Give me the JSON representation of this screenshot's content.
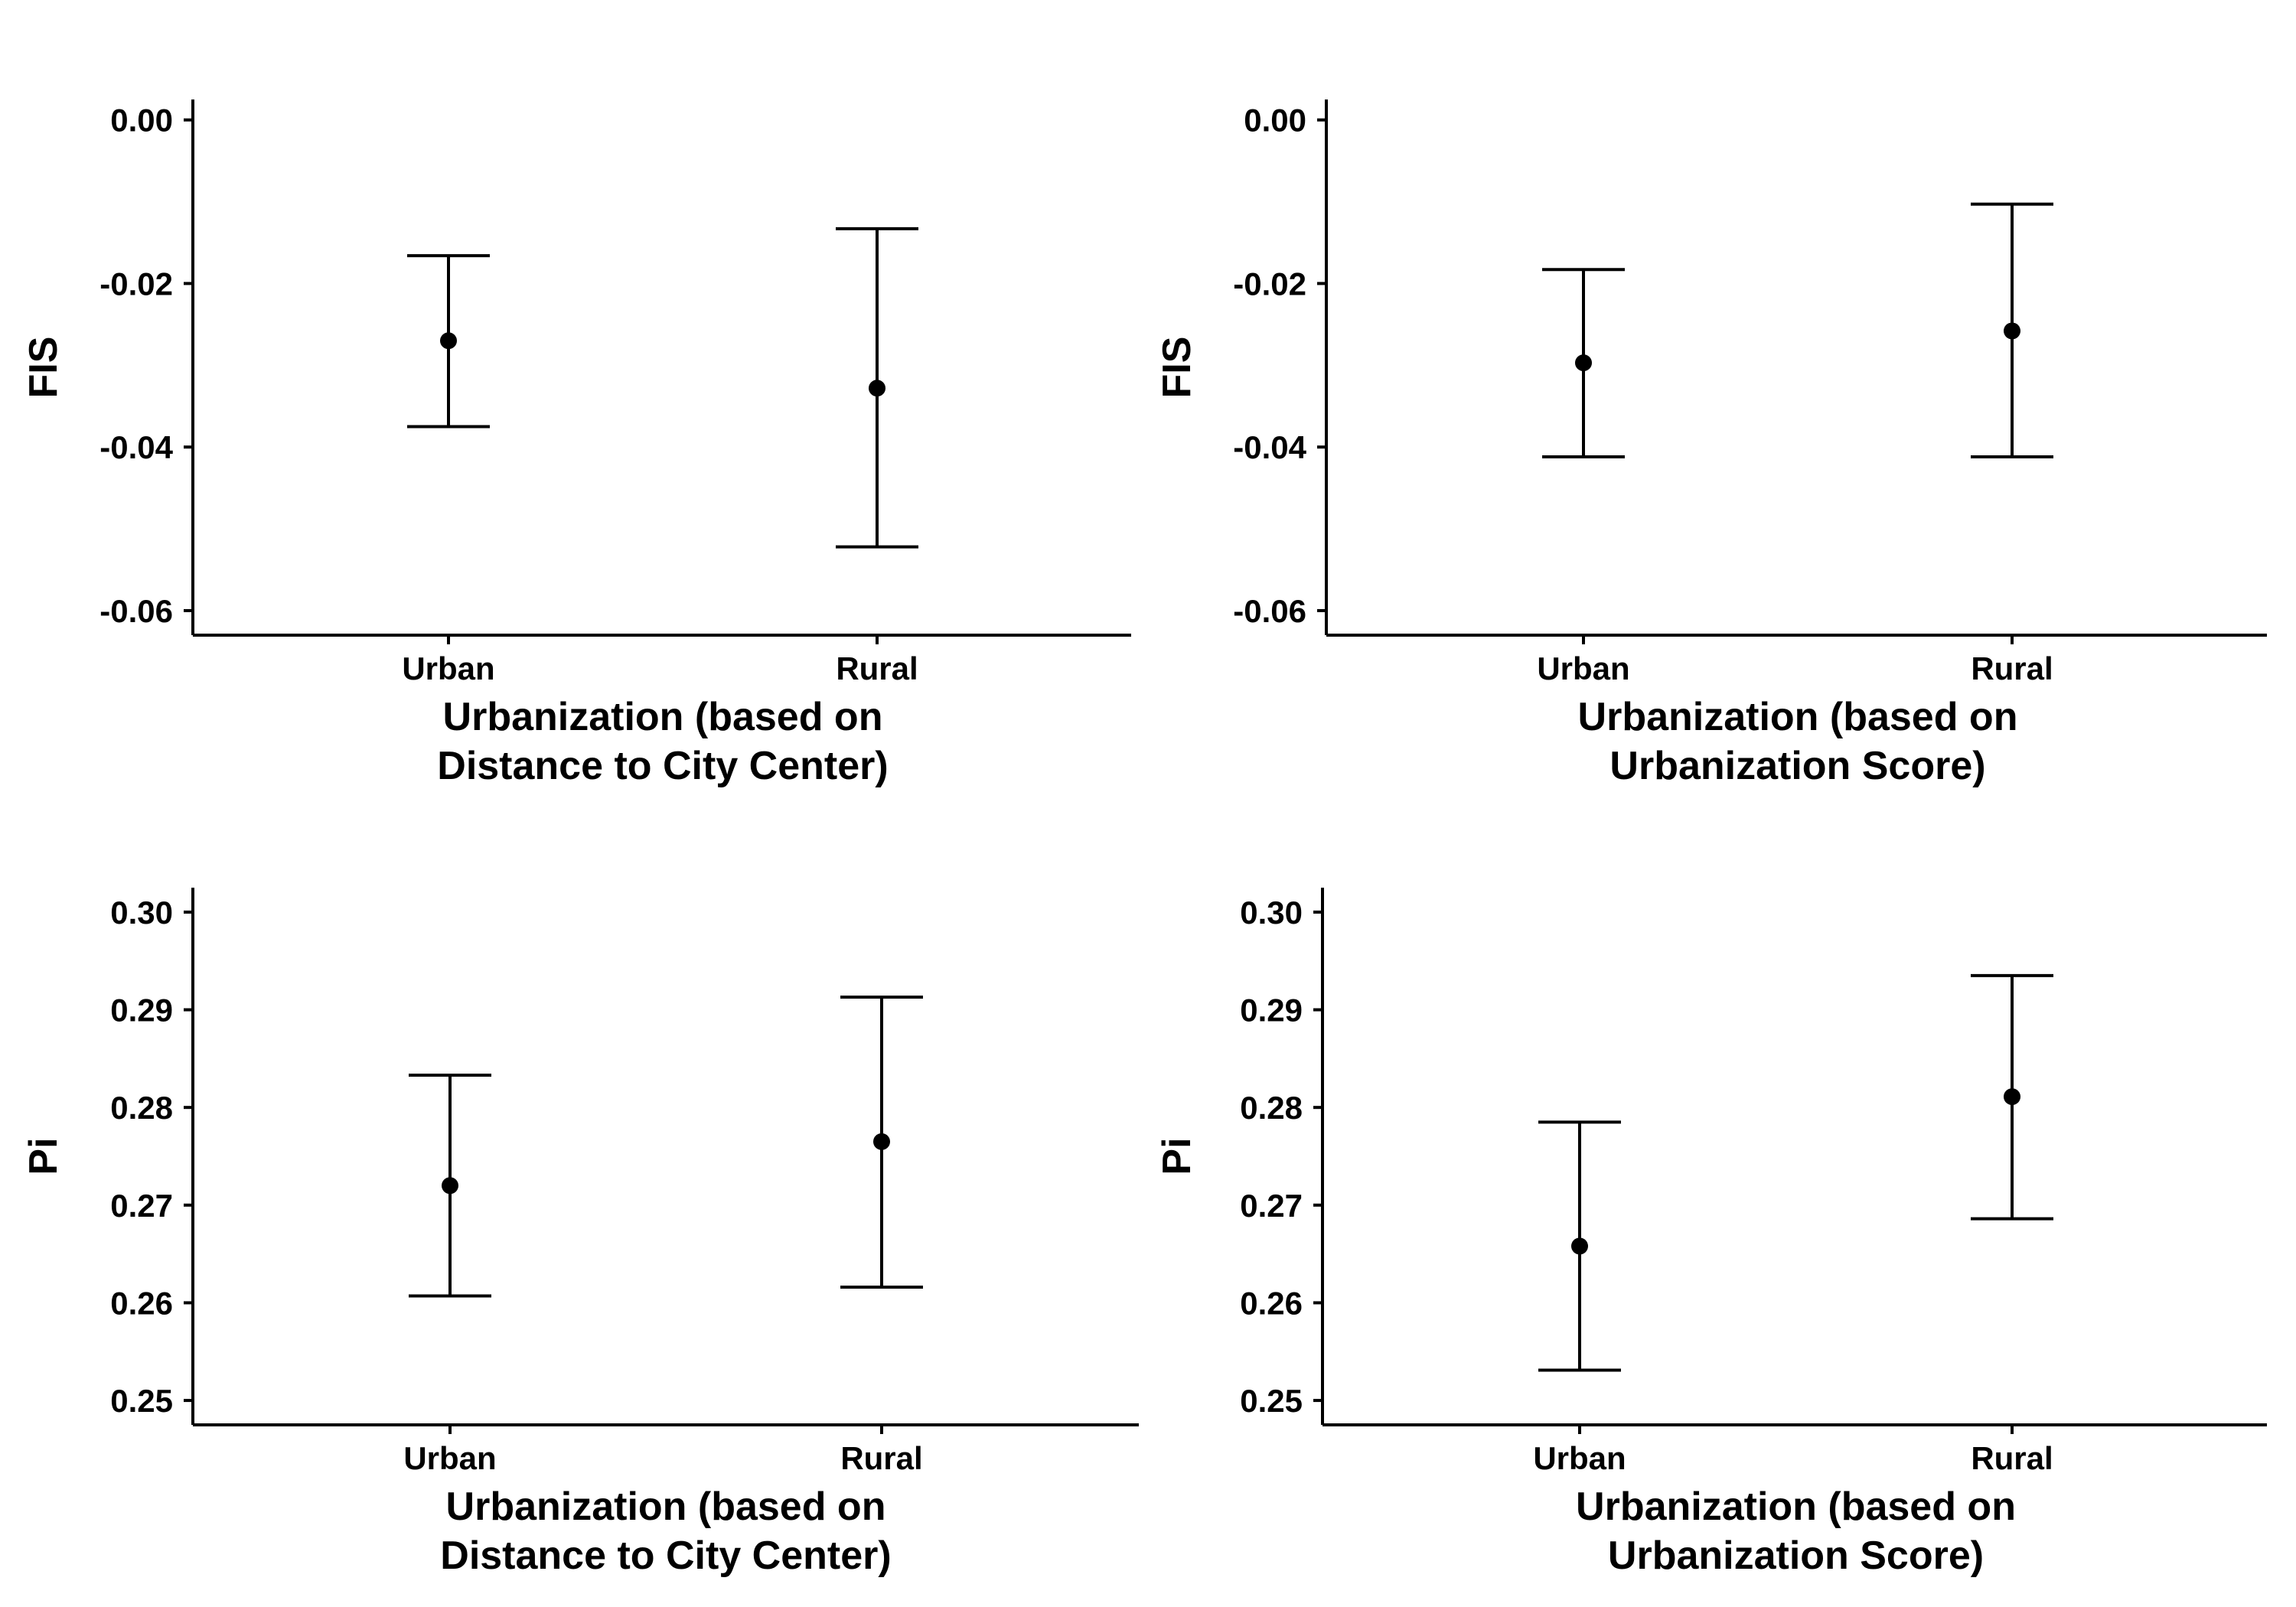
{
  "chart_data": [
    {
      "type": "scatter",
      "title": "",
      "ylabel": "FIS",
      "xlabel_lines": [
        "Urbanization (based on",
        "Distance to City Center)"
      ],
      "categories": [
        "Urban",
        "Rural"
      ],
      "ylim": [
        -0.063,
        0.0025
      ],
      "yticks": [
        0.0,
        -0.02,
        -0.04,
        -0.06
      ],
      "ytick_labels": [
        "0.00",
        "-0.02",
        "-0.04",
        "-0.06"
      ],
      "points": [
        {
          "category": "Urban",
          "y": -0.027,
          "ymin": -0.0375,
          "ymax": -0.0166
        },
        {
          "category": "Rural",
          "y": -0.0328,
          "ymin": -0.0522,
          "ymax": -0.0133
        }
      ]
    },
    {
      "type": "scatter",
      "title": "",
      "ylabel": "FIS",
      "xlabel_lines": [
        "Urbanization (based on",
        "Urbanization Score)"
      ],
      "categories": [
        "Urban",
        "Rural"
      ],
      "ylim": [
        -0.063,
        0.0025
      ],
      "yticks": [
        0.0,
        -0.02,
        -0.04,
        -0.06
      ],
      "ytick_labels": [
        "0.00",
        "-0.02",
        "-0.04",
        "-0.06"
      ],
      "points": [
        {
          "category": "Urban",
          "y": -0.0297,
          "ymin": -0.0412,
          "ymax": -0.0183
        },
        {
          "category": "Rural",
          "y": -0.0258,
          "ymin": -0.0412,
          "ymax": -0.0103
        }
      ]
    },
    {
      "type": "scatter",
      "title": "",
      "ylabel": "Pi",
      "xlabel_lines": [
        "Urbanization (based on",
        "Distance to City Center)"
      ],
      "categories": [
        "Urban",
        "Rural"
      ],
      "ylim": [
        0.2475,
        0.3025
      ],
      "yticks": [
        0.3,
        0.29,
        0.28,
        0.27,
        0.26,
        0.25
      ],
      "ytick_labels": [
        "0.30",
        "0.29",
        "0.28",
        "0.27",
        "0.26",
        "0.25"
      ],
      "points": [
        {
          "category": "Urban",
          "y": 0.272,
          "ymin": 0.2607,
          "ymax": 0.2833
        },
        {
          "category": "Rural",
          "y": 0.2765,
          "ymin": 0.2616,
          "ymax": 0.2913
        }
      ]
    },
    {
      "type": "scatter",
      "title": "",
      "ylabel": "Pi",
      "xlabel_lines": [
        "Urbanization (based on",
        "Urbanization Score)"
      ],
      "categories": [
        "Urban",
        "Rural"
      ],
      "ylim": [
        0.2475,
        0.3025
      ],
      "yticks": [
        0.3,
        0.29,
        0.28,
        0.27,
        0.26,
        0.25
      ],
      "ytick_labels": [
        "0.30",
        "0.29",
        "0.28",
        "0.27",
        "0.26",
        "0.25"
      ],
      "points": [
        {
          "category": "Urban",
          "y": 0.2658,
          "ymin": 0.2531,
          "ymax": 0.2785
        },
        {
          "category": "Rural",
          "y": 0.2811,
          "ymin": 0.2686,
          "ymax": 0.2935
        }
      ]
    }
  ]
}
